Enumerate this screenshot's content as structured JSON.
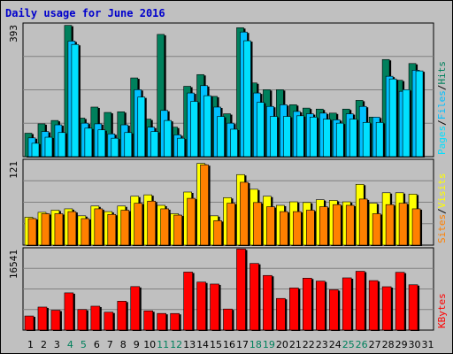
{
  "title": "Daily usage for June 2016",
  "colors": {
    "hits": "#00805c",
    "files": "#00c0ff",
    "pages": "#00e0ff",
    "visits": "#ffff00",
    "sites": "#ff8000",
    "kbytes": "#ff0000",
    "weekend_label": "#00805c",
    "weekday_label": "#000000"
  },
  "chart_data": [
    {
      "type": "bar",
      "name": "hits-files-pages",
      "categories": [
        "1",
        "2",
        "3",
        "4",
        "5",
        "6",
        "7",
        "8",
        "9",
        "10",
        "11",
        "12",
        "13",
        "14",
        "15",
        "16",
        "17",
        "18",
        "19",
        "20",
        "21",
        "22",
        "23",
        "24",
        "25",
        "26",
        "27",
        "28",
        "29",
        "30",
        "31"
      ],
      "ymax_label": "393",
      "ylim": [
        0,
        393
      ],
      "right_label": [
        "Pages",
        "Files",
        "Hits"
      ],
      "series": [
        {
          "name": "Hits",
          "values": [
            70,
            98,
            108,
            392,
            115,
            148,
            132,
            134,
            235,
            112,
            365,
            88,
            210,
            245,
            180,
            128,
            385,
            220,
            200,
            200,
            155,
            145,
            142,
            130,
            142,
            168,
            118,
            290,
            228,
            278,
            0
          ]
        },
        {
          "name": "Files",
          "values": [
            56,
            75,
            95,
            345,
            100,
            98,
            68,
            95,
            200,
            88,
            138,
            65,
            190,
            212,
            148,
            100,
            372,
            190,
            150,
            155,
            135,
            128,
            130,
            110,
            128,
            150,
            118,
            240,
            195,
            258,
            0
          ]
        },
        {
          "name": "Pages",
          "values": [
            40,
            58,
            72,
            335,
            85,
            80,
            55,
            72,
            178,
            75,
            108,
            55,
            165,
            182,
            120,
            82,
            346,
            162,
            120,
            120,
            122,
            118,
            112,
            100,
            112,
            102,
            102,
            232,
            200,
            256,
            0
          ]
        }
      ]
    },
    {
      "type": "bar",
      "name": "visits-sites",
      "categories": [
        "1",
        "2",
        "3",
        "4",
        "5",
        "6",
        "7",
        "8",
        "9",
        "10",
        "11",
        "12",
        "13",
        "14",
        "15",
        "16",
        "17",
        "18",
        "19",
        "20",
        "21",
        "22",
        "23",
        "24",
        "25",
        "26",
        "27",
        "28",
        "29",
        "30",
        "31"
      ],
      "ymax_label": "121",
      "ylim": [
        0,
        121
      ],
      "right_label": [
        "Sites",
        "Visits"
      ],
      "series": [
        {
          "name": "Visits",
          "values": [
            40,
            47,
            50,
            52,
            42,
            56,
            48,
            56,
            70,
            72,
            57,
            45,
            76,
            117,
            42,
            68,
            101,
            80,
            70,
            57,
            62,
            61,
            65,
            64,
            62,
            87,
            60,
            75,
            75,
            73,
            0
          ]
        },
        {
          "name": "Sites",
          "values": [
            38,
            45,
            45,
            48,
            38,
            52,
            44,
            50,
            60,
            63,
            52,
            43,
            67,
            115,
            35,
            60,
            90,
            61,
            55,
            48,
            48,
            50,
            55,
            58,
            57,
            66,
            45,
            58,
            60,
            52,
            0
          ]
        }
      ]
    },
    {
      "type": "bar",
      "name": "kbytes",
      "categories": [
        "1",
        "2",
        "3",
        "4",
        "5",
        "6",
        "7",
        "8",
        "9",
        "10",
        "11",
        "12",
        "13",
        "14",
        "15",
        "16",
        "17",
        "18",
        "19",
        "20",
        "21",
        "22",
        "23",
        "24",
        "25",
        "26",
        "27",
        "28",
        "29",
        "30",
        "31"
      ],
      "ymax_label": "16541",
      "ylim": [
        0,
        16541
      ],
      "right_label": [
        "KBytes"
      ],
      "series": [
        {
          "name": "KBytes",
          "values": [
            2880,
            4700,
            4050,
            7600,
            4200,
            4880,
            3660,
            5900,
            8880,
            3930,
            3400,
            3390,
            11840,
            9800,
            9400,
            4300,
            16541,
            13600,
            11150,
            6460,
            8600,
            10600,
            10000,
            8230,
            10660,
            12000,
            10100,
            8850,
            11790,
            9250,
            0
          ]
        }
      ]
    }
  ],
  "weekend_days": [
    "4",
    "5",
    "11",
    "12",
    "18",
    "19",
    "25",
    "26"
  ]
}
